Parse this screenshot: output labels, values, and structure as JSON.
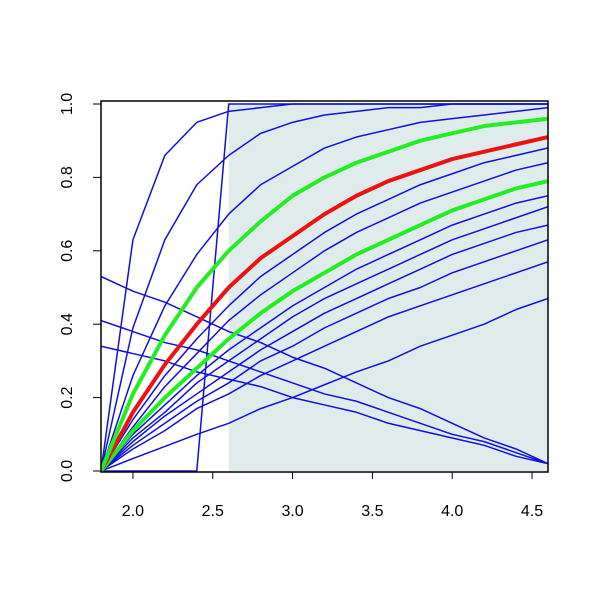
{
  "chart_data": {
    "type": "line",
    "x": [
      1.8,
      2.0,
      2.2,
      2.4,
      2.6,
      2.8,
      3.0,
      3.2,
      3.4,
      3.6,
      3.8,
      4.0,
      4.2,
      4.4,
      4.6
    ],
    "xlim": [
      1.8,
      4.6
    ],
    "ylim": [
      0,
      1
    ],
    "xticks": [
      {
        "value": 2,
        "label": "2.0"
      },
      2.5,
      {
        "value": 3,
        "label": "3.0"
      },
      3.5,
      {
        "value": 4,
        "label": "4.0"
      },
      4.5
    ],
    "yticks": [
      {
        "value": 0,
        "label": "0.0"
      },
      0.2,
      0.4,
      0.6,
      0.8,
      {
        "value": 1,
        "label": "1.0"
      }
    ],
    "shade": [
      2.6,
      4.6
    ],
    "shade_color": "#e0ecec",
    "series": [
      {
        "color": "#1010dd",
        "width": 1.5,
        "values": [
          0,
          0.63,
          0.86,
          0.95,
          0.98,
          0.99,
          1,
          1,
          1,
          1,
          1,
          1,
          1,
          1,
          1
        ]
      },
      {
        "color": "#1010dd",
        "width": 1.5,
        "values": [
          0,
          0.39,
          0.63,
          0.78,
          0.86,
          0.92,
          0.95,
          0.97,
          0.98,
          0.99,
          0.99,
          1,
          1,
          1,
          1
        ]
      },
      {
        "color": "#1010dd",
        "width": 1.5,
        "values": [
          0,
          0.26,
          0.45,
          0.59,
          0.7,
          0.78,
          0.83,
          0.88,
          0.91,
          0.93,
          0.95,
          0.96,
          0.97,
          0.98,
          0.99
        ]
      },
      {
        "color": "#1010dd",
        "width": 1.5,
        "values": [
          0,
          0,
          0,
          0,
          1,
          1,
          1,
          1,
          1,
          1,
          1,
          1,
          1,
          1,
          1
        ]
      },
      {
        "color": "#1010dd",
        "width": 1.5,
        "values": [
          0,
          0.14,
          0.26,
          0.36,
          0.45,
          0.53,
          0.59,
          0.65,
          0.7,
          0.74,
          0.78,
          0.81,
          0.84,
          0.86,
          0.88
        ]
      },
      {
        "color": "#1010dd",
        "width": 1.5,
        "values": [
          0,
          0.12,
          0.23,
          0.32,
          0.41,
          0.48,
          0.54,
          0.6,
          0.65,
          0.69,
          0.73,
          0.76,
          0.79,
          0.82,
          0.84
        ]
      },
      {
        "color": "#1010dd",
        "width": 1.5,
        "values": [
          0,
          0.1,
          0.18,
          0.26,
          0.33,
          0.39,
          0.45,
          0.5,
          0.55,
          0.59,
          0.63,
          0.67,
          0.7,
          0.73,
          0.75
        ]
      },
      {
        "color": "#1010dd",
        "width": 1.5,
        "values": [
          0,
          0.09,
          0.16,
          0.24,
          0.3,
          0.36,
          0.42,
          0.47,
          0.51,
          0.55,
          0.59,
          0.63,
          0.66,
          0.69,
          0.72
        ]
      },
      {
        "color": "#1010dd",
        "width": 1.5,
        "values": [
          0,
          0.08,
          0.15,
          0.21,
          0.27,
          0.33,
          0.38,
          0.43,
          0.47,
          0.51,
          0.55,
          0.59,
          0.62,
          0.65,
          0.67
        ]
      },
      {
        "color": "#1010dd",
        "width": 1.5,
        "values": [
          0,
          0.07,
          0.13,
          0.19,
          0.24,
          0.3,
          0.34,
          0.39,
          0.43,
          0.47,
          0.5,
          0.54,
          0.57,
          0.6,
          0.63
        ]
      },
      {
        "color": "#1010dd",
        "width": 1.5,
        "values": [
          0,
          0.06,
          0.11,
          0.17,
          0.21,
          0.26,
          0.3,
          0.34,
          0.38,
          0.42,
          0.45,
          0.48,
          0.51,
          0.54,
          0.57
        ]
      },
      {
        "color": "#1010dd",
        "width": 1.5,
        "values": [
          0,
          0.034,
          0.067,
          0.1,
          0.13,
          0.17,
          0.2,
          0.235,
          0.27,
          0.3,
          0.34,
          0.37,
          0.4,
          0.44,
          0.47
        ]
      },
      {
        "color": "#1010dd",
        "width": 1.5,
        "values": [
          0.53,
          0.49,
          0.46,
          0.42,
          0.38,
          0.35,
          0.31,
          0.28,
          0.24,
          0.2,
          0.17,
          0.13,
          0.09,
          0.06,
          0.02
        ]
      },
      {
        "color": "#1010dd",
        "width": 1.5,
        "values": [
          0.41,
          0.38,
          0.35,
          0.33,
          0.3,
          0.27,
          0.24,
          0.21,
          0.19,
          0.16,
          0.13,
          0.1,
          0.08,
          0.05,
          0.02
        ]
      },
      {
        "color": "#1010dd",
        "width": 1.5,
        "values": [
          0.34,
          0.32,
          0.3,
          0.27,
          0.25,
          0.23,
          0.2,
          0.18,
          0.16,
          0.13,
          0.11,
          0.09,
          0.07,
          0.04,
          0.02
        ]
      },
      {
        "color": "#22ee22",
        "width": 4,
        "values": [
          0,
          0.11,
          0.2,
          0.28,
          0.36,
          0.43,
          0.49,
          0.54,
          0.59,
          0.63,
          0.67,
          0.71,
          0.74,
          0.77,
          0.79
        ]
      },
      {
        "color": "#ee1111",
        "width": 4,
        "values": [
          0,
          0.16,
          0.29,
          0.4,
          0.5,
          0.58,
          0.64,
          0.7,
          0.75,
          0.79,
          0.82,
          0.85,
          0.87,
          0.89,
          0.91
        ]
      },
      {
        "color": "#22ee22",
        "width": 4,
        "values": [
          0,
          0.21,
          0.37,
          0.5,
          0.6,
          0.68,
          0.75,
          0.8,
          0.84,
          0.87,
          0.9,
          0.92,
          0.94,
          0.95,
          0.96
        ]
      }
    ]
  }
}
